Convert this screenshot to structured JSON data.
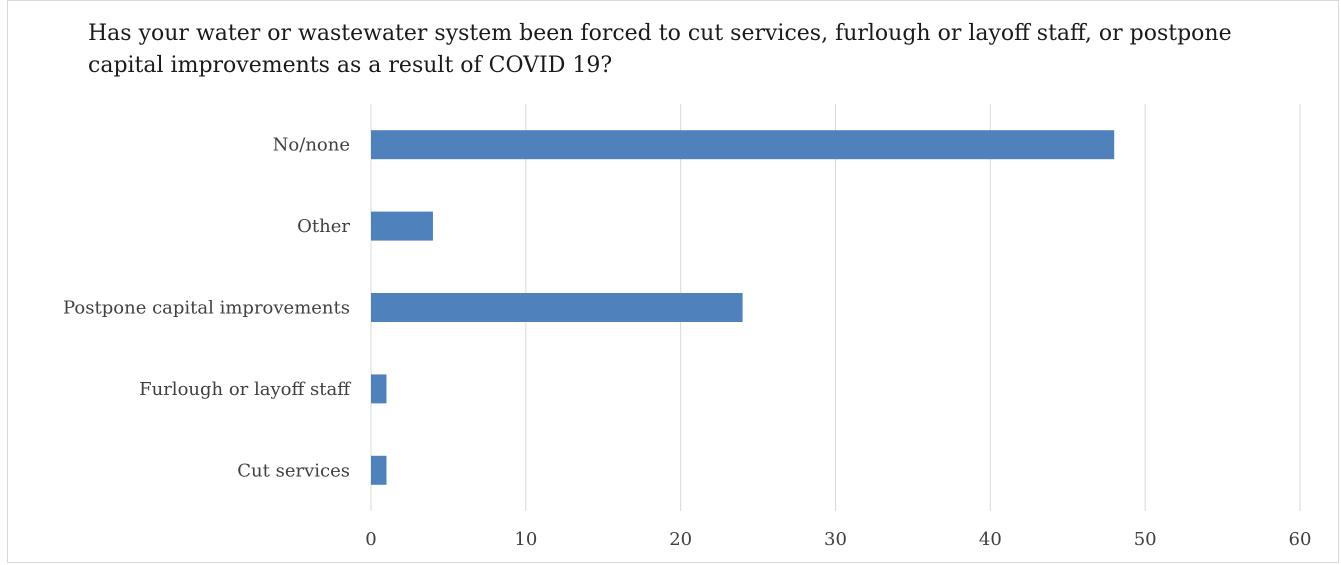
{
  "chart_data": {
    "type": "bar",
    "orientation": "horizontal",
    "title": "Has your water or wastewater system been forced to cut services, furlough or layoff staff, or postpone capital improvements as a result of COVID 19?",
    "categories": [
      "No/none",
      "Other",
      "Postpone capital improvements",
      "Furlough or layoff staff",
      "Cut services"
    ],
    "values": [
      48,
      4,
      24,
      1,
      1
    ],
    "xlim": [
      0,
      60
    ],
    "xticks": [
      0,
      10,
      20,
      30,
      40,
      50,
      60
    ],
    "xlabel": "",
    "ylabel": "",
    "grid": "vertical",
    "legend": "none",
    "bar_color": "#4f81bd",
    "grid_color": "#d9d9d9"
  }
}
